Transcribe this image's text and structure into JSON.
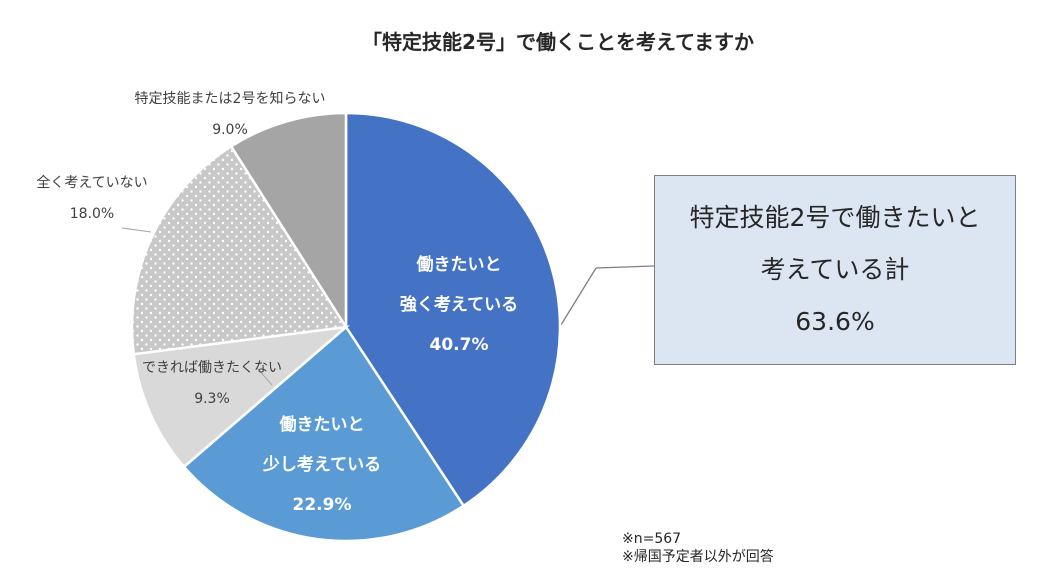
{
  "chart_data": {
    "type": "pie",
    "title": "「特定技能2号」で働くことを考えてますか",
    "slices": [
      {
        "lines": [
          "働きたいと",
          "強く考えている"
        ],
        "value": 40.7,
        "value_label": "40.7%",
        "color": "#4472c4",
        "label_inside": true,
        "pattern": false
      },
      {
        "lines": [
          "働きたいと",
          "少し考えている"
        ],
        "value": 22.9,
        "value_label": "22.9%",
        "color": "#5b9bd5",
        "label_inside": true,
        "pattern": false
      },
      {
        "lines": [
          "できれば働きたくない"
        ],
        "value": 9.3,
        "value_label": "9.3%",
        "color": "#d9d9d9",
        "label_inside": false,
        "pattern": false
      },
      {
        "lines": [
          "全く考えていない"
        ],
        "value": 18.0,
        "value_label": "18.0%",
        "color": "#c8c8c8",
        "label_inside": false,
        "pattern": true
      },
      {
        "lines": [
          "特定技能または2号を知らない"
        ],
        "value": 9.0,
        "value_label": "9.0%",
        "color": "#a5a5a5",
        "label_inside": false,
        "pattern": false
      }
    ]
  },
  "callout": {
    "line1": "特定技能2号で働きたいと",
    "line2": "考えている計",
    "value": "63.6%"
  },
  "notes": {
    "n": "※n=567",
    "scope": "※帰国予定者以外が回答"
  }
}
